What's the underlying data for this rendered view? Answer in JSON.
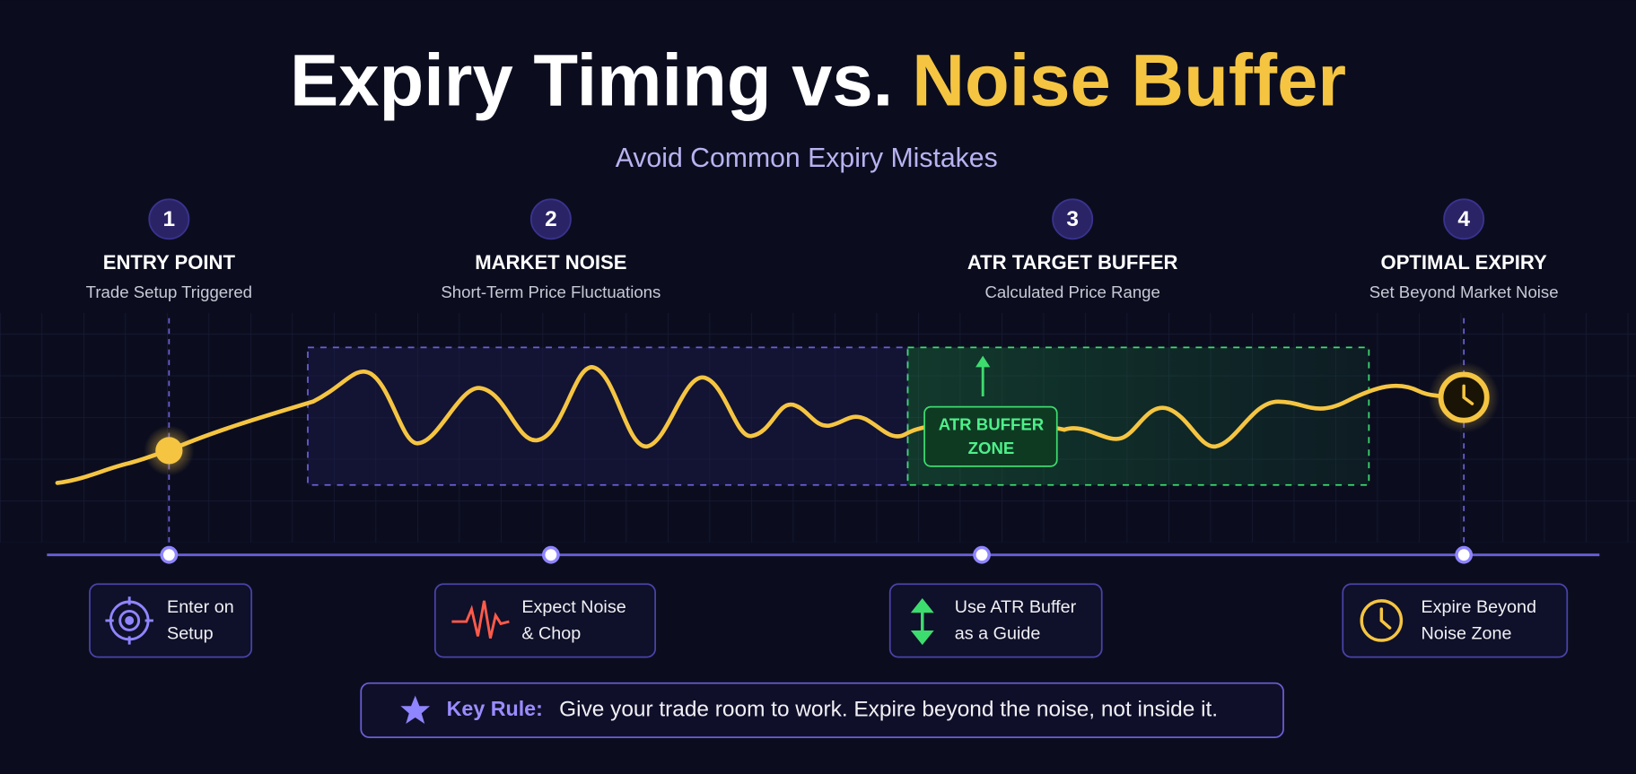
{
  "title": {
    "main": "Expiry Timing vs.",
    "highlight": "Noise Buffer"
  },
  "subtitle": "Avoid Common Expiry Mistakes",
  "steps": [
    {
      "number": 1,
      "title": "ENTRY POINT",
      "subtitle": "Trade Setup Triggered"
    },
    {
      "number": 2,
      "title": "MARKET NOISE",
      "subtitle": "Short-Term Price Fluctuations"
    },
    {
      "number": 3,
      "title": "ATR TARGET BUFFER",
      "subtitle": "Calculated Price Range"
    },
    {
      "number": 4,
      "title": "OPTIMAL EXPIRY",
      "subtitle": "Set Beyond Market Noise"
    }
  ],
  "zone_label": [
    "ATR BUFFER",
    "ZONE"
  ],
  "tips": [
    {
      "lines": [
        "Enter on",
        "Setup"
      ]
    },
    {
      "lines": [
        "Expect Noise",
        "& Chop"
      ]
    },
    {
      "lines": [
        "Use ATR Buffer",
        "as a Guide"
      ]
    },
    {
      "lines": [
        "Expire Beyond",
        "Noise Zone"
      ]
    }
  ],
  "key_rule": {
    "label": "Key Rule:",
    "text": "Give your trade room to work. Expire beyond the noise, not inside it."
  }
}
